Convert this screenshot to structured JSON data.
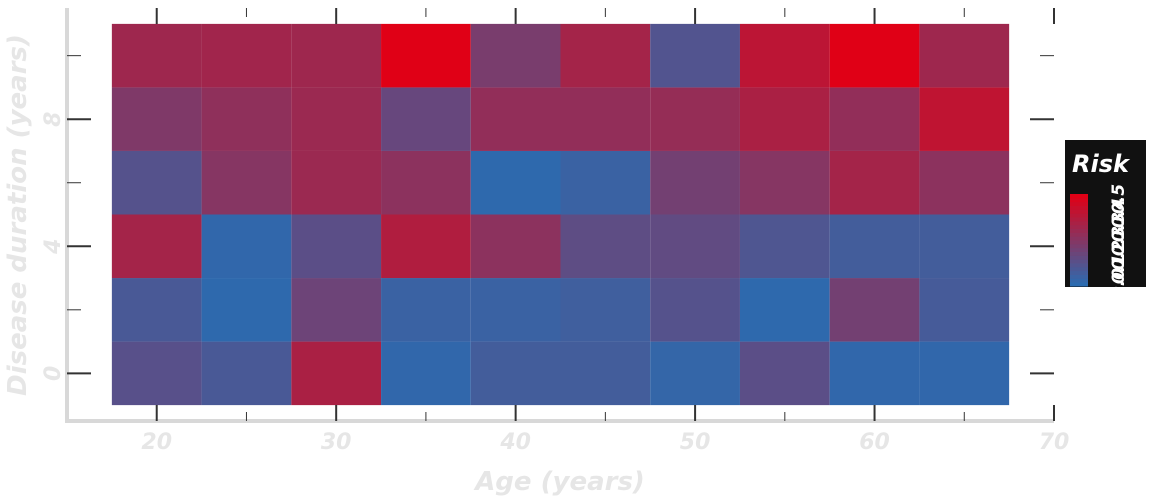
{
  "chart_data": {
    "type": "heatmap",
    "xlabel": "Age (years)",
    "ylabel": "Disease duration (years)",
    "x_centers": [
      20,
      25,
      30,
      35,
      40,
      45,
      50,
      55,
      60,
      65
    ],
    "y_centers": [
      0,
      2,
      4,
      6,
      8,
      10
    ],
    "xlim": [
      15,
      70
    ],
    "ylim": [
      -1.5,
      11.5
    ],
    "x_ticks": [
      20,
      30,
      40,
      50,
      60,
      70
    ],
    "y_ticks": [
      0,
      4,
      8
    ],
    "values": [
      [
        0.15,
        0.1,
        0.42,
        0.02,
        0.08,
        0.08,
        0.03,
        0.16,
        0.02,
        0.02
      ],
      [
        0.1,
        0.01,
        0.22,
        0.05,
        0.05,
        0.07,
        0.14,
        0.01,
        0.24,
        0.09
      ],
      [
        0.4,
        0.02,
        0.16,
        0.44,
        0.32,
        0.17,
        0.18,
        0.12,
        0.08,
        0.08
      ],
      [
        0.14,
        0.3,
        0.37,
        0.32,
        0.01,
        0.05,
        0.24,
        0.3,
        0.4,
        0.32
      ],
      [
        0.28,
        0.33,
        0.37,
        0.2,
        0.34,
        0.34,
        0.35,
        0.42,
        0.34,
        0.49
      ],
      [
        0.38,
        0.39,
        0.38,
        0.6,
        0.26,
        0.4,
        0.13,
        0.48,
        0.6,
        0.38
      ]
    ],
    "colorbar": {
      "title": "Risk",
      "ticks": [
        "0.0",
        "0.1",
        "0.2",
        "0.3",
        "0.3",
        "0.4",
        "0.5"
      ],
      "colors": [
        "#2b6bb0",
        "#e00016"
      ]
    },
    "grid": false
  }
}
